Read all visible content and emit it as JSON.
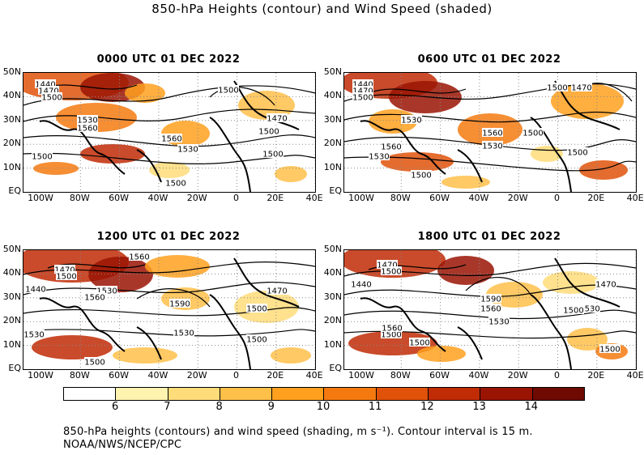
{
  "title": "850-hPa Heights (contour) and Wind Speed (shaded)",
  "panels": [
    {
      "title": "0000 UTC 01 DEC 2022",
      "contour_labels": [
        "1440",
        "1470",
        "1500",
        "1530",
        "1560",
        "1500",
        "1560",
        "1530",
        "1500",
        "1470",
        "1500",
        "1500",
        "1500"
      ]
    },
    {
      "title": "0600 UTC 01 DEC 2022",
      "contour_labels": [
        "1440",
        "1470",
        "1500",
        "1530",
        "1560",
        "1530",
        "1500",
        "1470",
        "1500",
        "1560",
        "1530",
        "1500",
        "1500"
      ]
    },
    {
      "title": "1200 UTC 01 DEC 2022",
      "contour_labels": [
        "1440",
        "1470",
        "1500",
        "1530",
        "1560",
        "1560",
        "1590",
        "1530",
        "1530",
        "1500",
        "1470",
        "1500",
        "1500"
      ]
    },
    {
      "title": "1800 UTC 01 DEC 2022",
      "contour_labels": [
        "1440",
        "1470",
        "1500",
        "1500",
        "1560",
        "1530",
        "1590",
        "1560",
        "1530",
        "1500",
        "1470",
        "1500",
        "1500"
      ]
    }
  ],
  "lat_labels": [
    "50N",
    "40N",
    "30N",
    "20N",
    "10N",
    "EQ"
  ],
  "lon_labels": [
    "100W",
    "80W",
    "60W",
    "40W",
    "20W",
    "0",
    "20E",
    "40E"
  ],
  "colorbar": {
    "labels": [
      "6",
      "7",
      "8",
      "9",
      "10",
      "11",
      "12",
      "13",
      "14"
    ],
    "colors": [
      "#ffffff",
      "#fff3b0",
      "#ffdc7a",
      "#ffc04a",
      "#ffa01e",
      "#f47a10",
      "#e0520a",
      "#c02c06",
      "#9a1404",
      "#6e0a02"
    ],
    "units": "m s⁻¹"
  },
  "caption": "850-hPa heights (contours) and wind speed (shading, m s⁻¹). Contour interval is 15 m. NOAA/NWS/NCEP/CPC"
}
